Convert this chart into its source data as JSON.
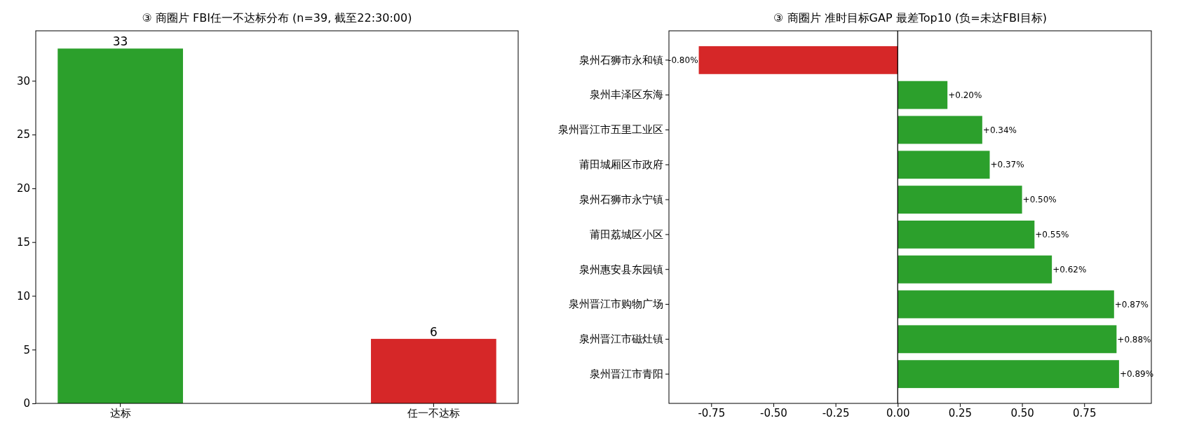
{
  "chart_data": [
    {
      "type": "bar",
      "title": "③ 商圈片 FBI任一不达标分布 (n=39, 截至22:30:00)",
      "categories": [
        "达标",
        "任一不达标"
      ],
      "values": [
        33,
        6
      ],
      "colors": [
        "#2ca02c",
        "#d62728"
      ],
      "ylim": [
        0,
        34.65
      ],
      "yticks": [
        0,
        5,
        10,
        15,
        20,
        25,
        30
      ],
      "data_labels": true
    },
    {
      "type": "bar",
      "orientation": "horizontal",
      "title": "③ 商圈片 准时目标GAP 最差Top10 (负=未达FBI目标)",
      "categories": [
        "泉州石狮市永和镇",
        "泉州丰泽区东海",
        "泉州晋江市五里工业区",
        "莆田城厢区市政府",
        "泉州石狮市永宁镇",
        "莆田荔城区小区",
        "泉州惠安县东园镇",
        "泉州晋江市购物广场",
        "泉州晋江市磁灶镇",
        "泉州晋江市青阳"
      ],
      "values": [
        -0.8,
        0.2,
        0.34,
        0.37,
        0.5,
        0.55,
        0.62,
        0.87,
        0.88,
        0.89
      ],
      "value_labels": [
        "-0.80%",
        "+0.20%",
        "+0.34%",
        "+0.37%",
        "+0.50%",
        "+0.55%",
        "+0.62%",
        "+0.87%",
        "+0.88%",
        "+0.89%"
      ],
      "colors": [
        "#d62728",
        "#2ca02c",
        "#2ca02c",
        "#2ca02c",
        "#2ca02c",
        "#2ca02c",
        "#2ca02c",
        "#2ca02c",
        "#2ca02c",
        "#2ca02c"
      ],
      "xlim": [
        -0.92,
        1.02
      ],
      "xticks": [
        {
          "value": -0.75,
          "label": "-0.75"
        },
        {
          "value": -0.5,
          "label": "-0.50"
        },
        {
          "value": -0.25,
          "label": "-0.25"
        },
        {
          "value": 0,
          "label": "0.00"
        },
        {
          "value": 0.25,
          "label": "0.25"
        },
        {
          "value": 0.5,
          "label": "0.50"
        },
        {
          "value": 0.75,
          "label": "0.75"
        }
      ],
      "ref_lines": [
        {
          "axis": "x",
          "value": 0,
          "color": "#000000"
        }
      ]
    }
  ]
}
